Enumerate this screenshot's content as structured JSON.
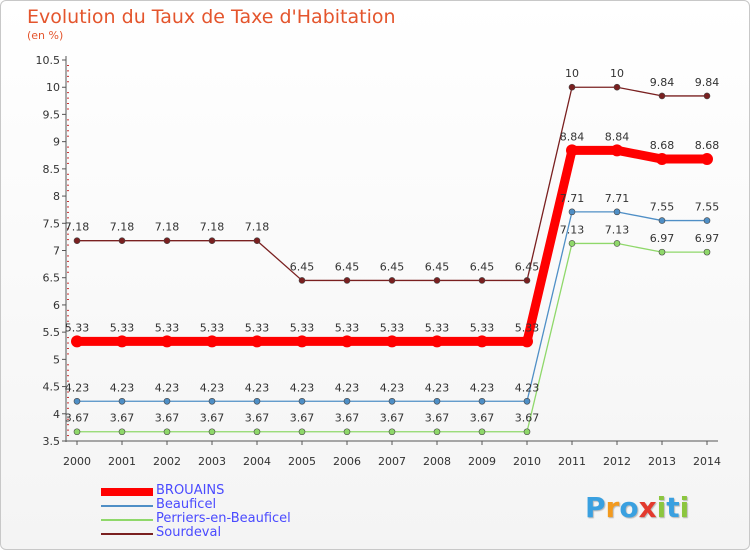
{
  "title": "Evolution du Taux de Taxe d'Habitation",
  "subtitle": "(en %)",
  "logo": {
    "letters": [
      "P",
      "r",
      "o",
      "x",
      "i",
      "t",
      "i"
    ],
    "colors": [
      "#3aa0e0",
      "#f39a1e",
      "#3aa0e0",
      "#e33a2e",
      "#8cc63f",
      "#3aa0e0",
      "#8cc63f"
    ]
  },
  "chart_data": {
    "type": "line",
    "x": [
      "2000",
      "2001",
      "2002",
      "2003",
      "2004",
      "2005",
      "2006",
      "2007",
      "2008",
      "2009",
      "2010",
      "2011",
      "2012",
      "2013",
      "2014"
    ],
    "ylim": [
      3.5,
      10.5
    ],
    "yticks": [
      "3.5",
      "4",
      "4.5",
      "5",
      "5.5",
      "6",
      "6.5",
      "7",
      "7.5",
      "8",
      "8.5",
      "9",
      "9.5",
      "10",
      "10.5"
    ],
    "grid": false,
    "legend_position": "bottom-left",
    "series": [
      {
        "name": "BROUAINS",
        "color": "#ff0000",
        "values": [
          5.33,
          5.33,
          5.33,
          5.33,
          5.33,
          5.33,
          5.33,
          5.33,
          5.33,
          5.33,
          5.33,
          8.84,
          8.84,
          8.68,
          8.68
        ],
        "labels": [
          "5.33",
          "5.33",
          "5.33",
          "5.33",
          "5.33",
          "5.33",
          "5.33",
          "5.33",
          "5.33",
          "5.33",
          "5.33",
          "8.84",
          "8.84",
          "8.68",
          "8.68"
        ]
      },
      {
        "name": "Beauficel",
        "color": "#4f8fc6",
        "values": [
          4.23,
          4.23,
          4.23,
          4.23,
          4.23,
          4.23,
          4.23,
          4.23,
          4.23,
          4.23,
          4.23,
          7.71,
          7.71,
          7.55,
          7.55
        ],
        "labels": [
          "4.23",
          "4.23",
          "4.23",
          "4.23",
          "4.23",
          "4.23",
          "4.23",
          "4.23",
          "4.23",
          "4.23",
          "4.23",
          "7.71",
          "7.71",
          "7.55",
          "7.55"
        ]
      },
      {
        "name": "Perriers-en-Beauficel",
        "color": "#8fd86a",
        "values": [
          3.67,
          3.67,
          3.67,
          3.67,
          3.67,
          3.67,
          3.67,
          3.67,
          3.67,
          3.67,
          3.67,
          7.13,
          7.13,
          6.97,
          6.97
        ],
        "labels": [
          "3.67",
          "3.67",
          "3.67",
          "3.67",
          "3.67",
          "3.67",
          "3.67",
          "3.67",
          "3.67",
          "3.67",
          "3.67",
          "7.13",
          "7.13",
          "6.97",
          "6.97"
        ]
      },
      {
        "name": "Sourdeval",
        "color": "#7a2020",
        "values": [
          7.18,
          7.18,
          7.18,
          7.18,
          7.18,
          6.45,
          6.45,
          6.45,
          6.45,
          6.45,
          6.45,
          10,
          10,
          9.84,
          9.84
        ],
        "labels": [
          "7.18",
          "7.18",
          "7.18",
          "7.18",
          "7.18",
          "6.45",
          "6.45",
          "6.45",
          "6.45",
          "6.45",
          "6.45",
          "10",
          "10",
          "9.84",
          "9.84"
        ]
      }
    ]
  }
}
